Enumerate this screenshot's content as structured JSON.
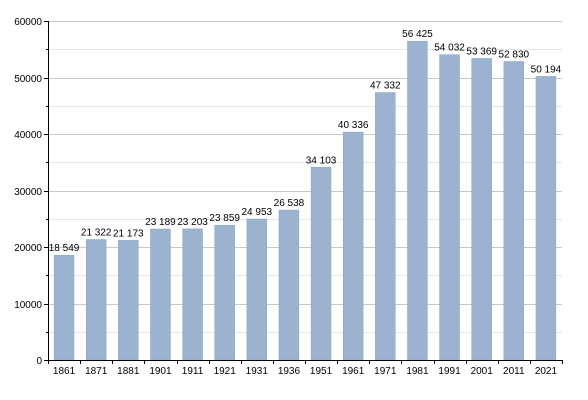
{
  "chart_data": {
    "type": "bar",
    "title": "",
    "xlabel": "",
    "ylabel": "",
    "categories": [
      "1861",
      "1871",
      "1881",
      "1901",
      "1911",
      "1921",
      "1931",
      "1936",
      "1951",
      "1961",
      "1971",
      "1981",
      "1991",
      "2001",
      "2011",
      "2021"
    ],
    "values": [
      18549,
      21322,
      21173,
      23189,
      23203,
      23859,
      24953,
      26538,
      34103,
      40336,
      47332,
      56425,
      54032,
      53369,
      52830,
      50194
    ],
    "value_labels": [
      "18 549",
      "21 322",
      "21 173",
      "23 189",
      "23 203",
      "23 859",
      "24 953",
      "26 538",
      "34 103",
      "40 336",
      "47 332",
      "56 425",
      "54 032",
      "53 369",
      "52 830",
      "50 194"
    ],
    "ylim": [
      0,
      60000
    ],
    "yticks": [
      0,
      10000,
      20000,
      30000,
      40000,
      50000,
      60000
    ],
    "ytick_labels": [
      "0",
      "10000",
      "20000",
      "30000",
      "40000",
      "50000",
      "60000"
    ],
    "grid": true,
    "legend": "none",
    "colors": {
      "bar": "#9bb3cf",
      "bar_border": "#8aa3c0",
      "grid_major": "#c8c8c8",
      "grid_minor": "#e6e6e6",
      "axis": "#000000"
    }
  }
}
